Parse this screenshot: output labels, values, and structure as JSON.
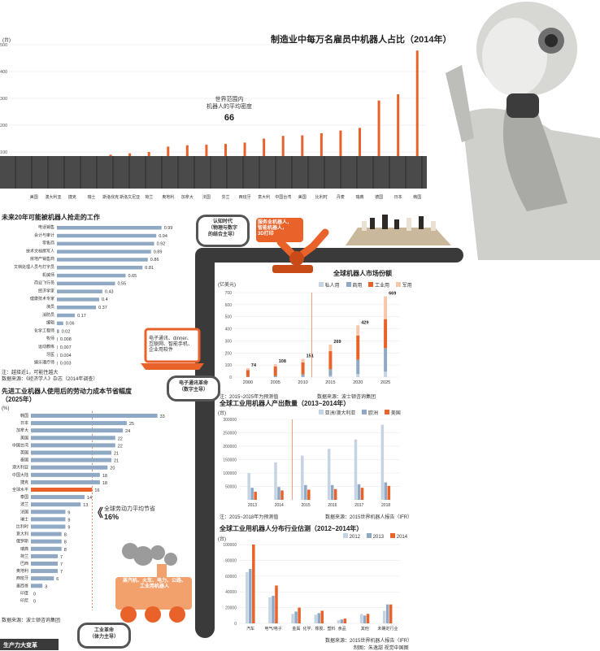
{
  "colors": {
    "orange": "#e8622a",
    "blue": "#8fa9c4",
    "lightblue": "#c5d3e2",
    "dark": "#3a3a3a",
    "gray": "#d9d9d9"
  },
  "icons": [
    "robot-photo",
    "conveyor-belt-icon",
    "robot-arm-icon",
    "laptop-icon",
    "steam-train-icon",
    "chess-board-icon"
  ],
  "top": {
    "title": "制造业中每万名雇员中机器人占比（2014年）",
    "unit": "(台)",
    "world_avg_label": "世界范围内\n机器人的平均密度",
    "world_avg_value": "66"
  },
  "jobs": {
    "title": "未来20年可能被机器人抢走的工作",
    "note": "注：越接近1，可能性越大",
    "source": "数据来源：《经济学人》杂志（2014年调查）"
  },
  "saving": {
    "title": "先进工业机器人使用后的劳动力成本节省幅度\n（2025年）",
    "unit": "(%)",
    "avg_label": "全球劳动力平均节省",
    "avg_value": "16%",
    "source": "数据来源：波士顿咨询集团"
  },
  "market": {
    "title": "全球机器人市场份额",
    "unit": "(亿美元)",
    "legend": [
      "私人用",
      "商用",
      "工业用",
      "军用"
    ],
    "note": "注：2015~2025年为预测值",
    "source": "数据来源：波士顿咨询集团"
  },
  "output": {
    "title": "全球工业用机器人产出数量（2013~2014年）",
    "unit": "(台)",
    "legend": [
      "亚洲/澳大利亚",
      "欧洲",
      "美国"
    ],
    "note": "注：2015~2018年为预测值",
    "source": "数据来源：2015世界机器人报告（IFR）"
  },
  "industry": {
    "title": "全球工业用机器人分布行业估测（2012~2014年）",
    "unit": "(台)",
    "legend": [
      "2012",
      "2013",
      "2014"
    ],
    "source": "数据来源：2015世界机器人报告（IFR）"
  },
  "labels": {
    "era_cognitive": "认知时代\n（物理与数字\n的结合主导）",
    "robot_text": "服务业机器人，\n智能机器人，\n3D打印",
    "laptop_text": "电子通讯、dinner、\n互联网、智能手机、\n企业用软件",
    "era_electronic": "电子通讯革命\n（数字主导）",
    "train_text": "蒸汽机、火车、电力、公路、\n工业用机器人",
    "era_industrial": "工业革命\n（体力主导）",
    "footer": "生产力大变革",
    "credit": "制图：朱逸甜  视觉中国图"
  },
  "chart_data": [
    {
      "type": "bar",
      "title": "制造业中每万名雇员中机器人占比（2014年）",
      "categories": [
        "美国",
        "澳大利亚",
        "捷克",
        "瑞士",
        "斯洛伐克",
        "斯洛文尼亚",
        "荷兰",
        "奥地利",
        "加拿大",
        "法国",
        "芬兰",
        "西班牙",
        "意大利",
        "中国台湾",
        "美国",
        "比利时",
        "丹麦",
        "瑞典",
        "德国",
        "日本",
        "韩国"
      ],
      "values": [
        62,
        70,
        80,
        85,
        90,
        95,
        100,
        120,
        125,
        127,
        130,
        135,
        150,
        160,
        162,
        170,
        180,
        190,
        292,
        315,
        478
      ],
      "ylim": [
        0,
        500
      ],
      "reference_line": 66
    },
    {
      "type": "bar",
      "title": "未来20年可能被机器人抢走的工作",
      "categories": [
        "电话销售",
        "会计与审计",
        "零售商",
        "技术文档撰写人",
        "房地产销售商",
        "文档处理人员与打字员",
        "机械师",
        "商业飞行员",
        "经济学家",
        "健康技术专家",
        "演员",
        "消防员",
        "编辑",
        "化学工程师",
        "牧师",
        "运动教练",
        "牙医",
        "娱乐理疗师"
      ],
      "values": [
        0.99,
        0.94,
        0.92,
        0.89,
        0.86,
        0.81,
        0.65,
        0.55,
        0.43,
        0.4,
        0.37,
        0.17,
        0.06,
        0.02,
        0.008,
        0.007,
        0.004,
        0.003
      ],
      "value_labels": [
        "0.99",
        "0.94",
        "0.92",
        "0.89",
        "0.86",
        "0.81",
        "0.65",
        "0.55",
        "0.43",
        "0.4",
        "0.37",
        "0.17",
        "0.06",
        "0.02",
        "0.008",
        "0.007",
        "0.004",
        "0.003"
      ],
      "xlim": [
        0,
        1
      ]
    },
    {
      "type": "bar",
      "title": "先进工业机器人使用后的劳动力成本节省幅度（2025年）",
      "categories": [
        "韩国",
        "日本",
        "加拿大",
        "美国",
        "中国台湾",
        "英国",
        "泰国",
        "澳大利亚",
        "中国大陆",
        "捷克",
        "全球水平",
        "泰国",
        "波兰",
        "法国",
        "瑞士",
        "比利时",
        "意大利",
        "俄罗斯",
        "瑞典",
        "荷兰",
        "巴西",
        "奥地利",
        "西班牙",
        "墨西哥",
        "印度",
        "印尼"
      ],
      "values": [
        33,
        25,
        24,
        22,
        22,
        21,
        21,
        20,
        18,
        18,
        16,
        14,
        13,
        9,
        9,
        9,
        8,
        8,
        8,
        7,
        7,
        7,
        6,
        3,
        0,
        0
      ],
      "highlight": "全球水平",
      "xlim": [
        0,
        35
      ]
    },
    {
      "type": "bar",
      "title": "全球机器人市场份额",
      "categories": [
        "2000",
        "2005",
        "2010",
        "2015",
        "2020",
        "2025"
      ],
      "series": [
        {
          "name": "私人用",
          "values": [
            0,
            0,
            2,
            10,
            25,
            45
          ]
        },
        {
          "name": "商用",
          "values": [
            3,
            10,
            20,
            55,
            120,
            195
          ]
        },
        {
          "name": "工业用",
          "values": [
            56,
            78,
            100,
            150,
            200,
            240
          ]
        },
        {
          "name": "军用",
          "values": [
            15,
            20,
            29,
            54,
            84,
            189
          ]
        }
      ],
      "totals": [
        74,
        108,
        151,
        269,
        429,
        669
      ],
      "ylim": [
        0,
        700
      ]
    },
    {
      "type": "bar",
      "title": "全球工业用机器人产出数量（2013~2014年）",
      "categories": [
        "2013",
        "2014",
        "2015",
        "2016",
        "2017",
        "2018"
      ],
      "series": [
        {
          "name": "亚洲/澳大利亚",
          "values": [
            100000,
            140000,
            165000,
            190000,
            225000,
            280000
          ]
        },
        {
          "name": "欧洲",
          "values": [
            45000,
            48000,
            55000,
            55000,
            58000,
            65000
          ]
        },
        {
          "name": "美国",
          "values": [
            30000,
            35000,
            38000,
            40000,
            45000,
            52000
          ]
        }
      ],
      "ylim": [
        0,
        300000
      ]
    },
    {
      "type": "bar",
      "title": "全球工业用机器人分布行业估测（2012~2014年）",
      "categories": [
        "汽车",
        "电气/电子",
        "金属",
        "化学、橡胶、塑料",
        "食品",
        "其他",
        "未确定行业"
      ],
      "series": [
        {
          "name": "2012",
          "values": [
            65000,
            33000,
            12000,
            11000,
            4000,
            12000,
            16000
          ]
        },
        {
          "name": "2013",
          "values": [
            69000,
            35000,
            15000,
            13000,
            5000,
            10000,
            24000
          ]
        },
        {
          "name": "2014",
          "values": [
            100000,
            48000,
            20000,
            16000,
            6000,
            12000,
            24000
          ]
        }
      ],
      "ylim": [
        0,
        100000
      ]
    }
  ]
}
